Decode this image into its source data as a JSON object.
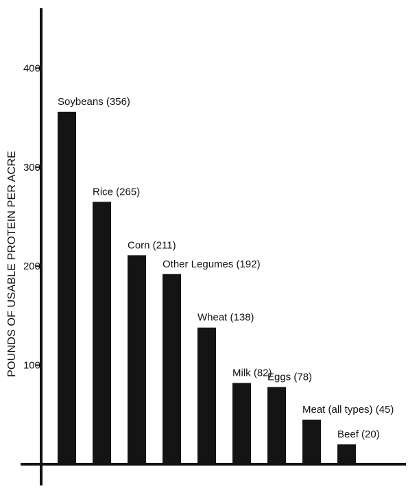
{
  "chart_data": {
    "type": "bar",
    "categories": [
      "Soybeans",
      "Rice",
      "Corn",
      "Other Legumes",
      "Wheat",
      "Milk",
      "Eggs",
      "Meat (all types)",
      "Beef"
    ],
    "values": [
      356,
      265,
      211,
      192,
      138,
      82,
      78,
      45,
      20
    ],
    "bar_labels": [
      "Soybeans (356)",
      "Rice (265)",
      "Corn (211)",
      "Other Legumes (192)",
      "Wheat (138)",
      "Milk (82)",
      "Eggs (78)",
      "Meat (all types) (45)",
      "Beef (20)"
    ],
    "ylabel": "POUNDS OF USABLE PROTEIN PER ACRE",
    "xlabel": "",
    "yticks": [
      "100",
      "200",
      "300",
      "400"
    ],
    "ylim": [
      0,
      400
    ],
    "grid": false,
    "colors": {
      "bar": "#141414",
      "axis": "#111111",
      "background": "#ffffff"
    }
  }
}
